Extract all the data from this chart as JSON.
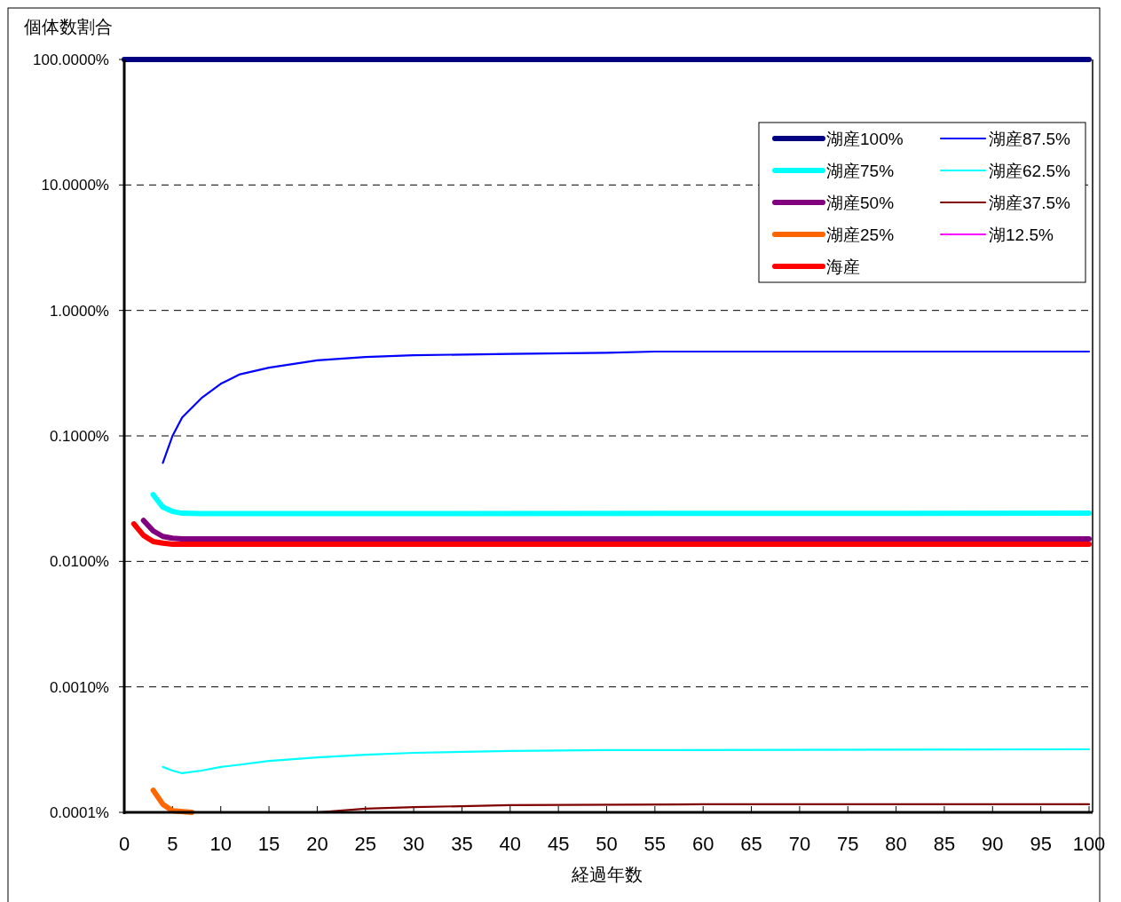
{
  "chart_data": {
    "type": "line",
    "ylabel": "個体数割合",
    "xlabel": "経過年数",
    "log": "y",
    "grid": "y",
    "legend": "top right",
    "line_style": "solid",
    "xlim": [
      0,
      100
    ],
    "xticks": [
      0,
      5,
      10,
      15,
      20,
      25,
      30,
      35,
      40,
      45,
      50,
      55,
      60,
      65,
      70,
      75,
      80,
      85,
      90,
      95,
      100
    ],
    "ylim": [
      0.0001,
      100
    ],
    "yticks": [
      {
        "value": 0.0001,
        "label": "0.0001%"
      },
      {
        "value": 0.001,
        "label": "0.0010%"
      },
      {
        "value": 0.01,
        "label": "0.0100%"
      },
      {
        "value": 0.1,
        "label": "0.1000%"
      },
      {
        "value": 1,
        "label": "1.0000%"
      },
      {
        "value": 10,
        "label": "10.0000%"
      },
      {
        "value": 100,
        "label": "100.0000%"
      }
    ],
    "series": [
      {
        "name": "湖産100%",
        "color": "#000080",
        "x": [
          0,
          100
        ],
        "values": [
          100,
          100
        ]
      },
      {
        "name": "湖産87.5%",
        "color": "#0000ff",
        "x": [
          4,
          5,
          6,
          8,
          10,
          12,
          15,
          20,
          25,
          30,
          40,
          50,
          55,
          100
        ],
        "values": [
          0.061,
          0.1,
          0.14,
          0.2,
          0.26,
          0.31,
          0.35,
          0.4,
          0.425,
          0.44,
          0.45,
          0.46,
          0.47,
          0.47
        ]
      },
      {
        "name": "湖産75%",
        "color": "#00ffff",
        "x": [
          3,
          4,
          5,
          6,
          8,
          100
        ],
        "values": [
          0.034,
          0.027,
          0.025,
          0.0242,
          0.024,
          0.0242
        ]
      },
      {
        "name": "湖産62.5%",
        "color": "#00ffff",
        "x": [
          4,
          5,
          6,
          8,
          10,
          12,
          15,
          20,
          25,
          30,
          40,
          50,
          100
        ],
        "values": [
          0.00023,
          0.000215,
          0.000205,
          0.000215,
          0.00023,
          0.00024,
          0.000257,
          0.000274,
          0.000288,
          0.000298,
          0.000308,
          0.000313,
          0.000318
        ]
      },
      {
        "name": "湖産50%",
        "color": "#800080",
        "x": [
          2,
          3,
          4,
          5,
          6,
          100
        ],
        "values": [
          0.0212,
          0.0175,
          0.0158,
          0.0153,
          0.0151,
          0.0151
        ]
      },
      {
        "name": "湖産37.5%",
        "color": "#800000",
        "x": [
          20,
          25,
          30,
          40,
          60,
          100
        ],
        "values": [
          0.0001,
          0.000107,
          0.00011,
          0.000114,
          0.000116,
          0.000116
        ]
      },
      {
        "name": "湖産25%",
        "color": "#ff6600",
        "x": [
          3,
          4,
          5,
          7
        ],
        "values": [
          0.00015,
          0.000116,
          0.000103,
          0.0001
        ]
      },
      {
        "name": "湖12.5%",
        "color": "#ff00ff"
      },
      {
        "name": "海産",
        "color": "#ff0000",
        "x": [
          1,
          2,
          3,
          4,
          5,
          100
        ],
        "values": [
          0.0199,
          0.0161,
          0.0144,
          0.014,
          0.0137,
          0.0137
        ]
      }
    ]
  }
}
